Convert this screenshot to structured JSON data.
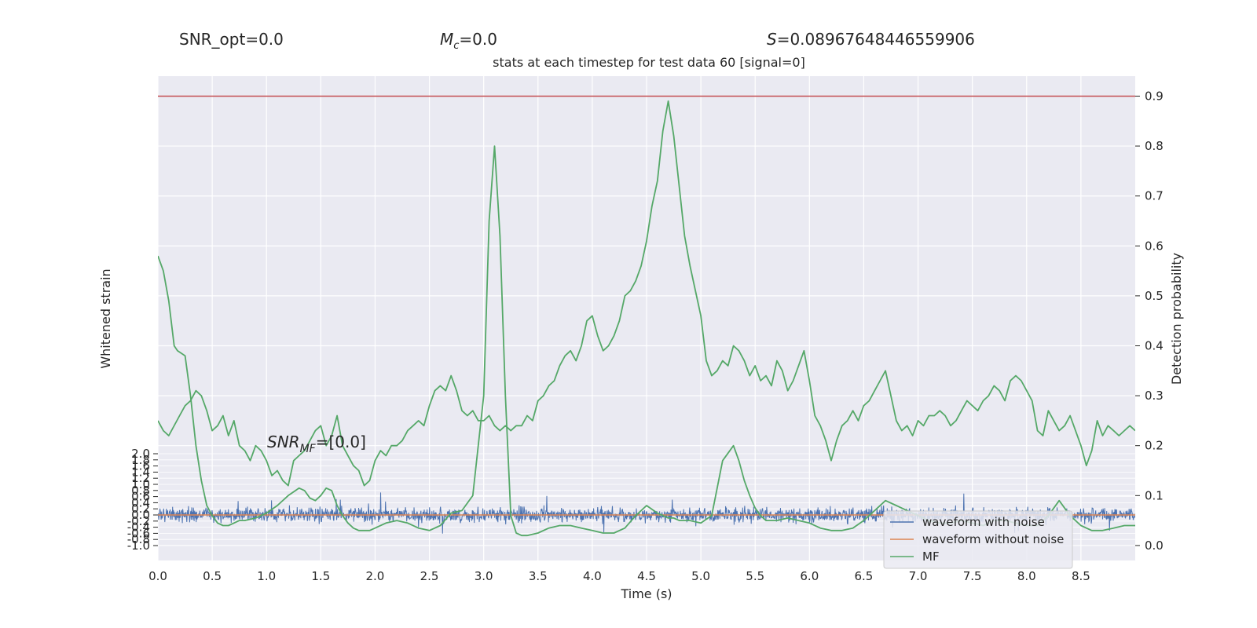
{
  "header": {
    "snr_opt": "SNR_opt=0.0",
    "mc_symbol": "M",
    "mc_sub": "c",
    "mc_value": "=0.0",
    "s_symbol": "S",
    "s_value": "=0.08967648446559906",
    "subtitle": "stats at each timestep for test data 60 [signal=0]"
  },
  "chart_data": [
    {
      "type": "line",
      "panel": "main",
      "xlabel": "Time (s)",
      "ylabel_left": "Whitened strain",
      "ylabel_right": "Detection probability",
      "xlim": [
        0.0,
        9.0
      ],
      "ylim": [
        -0.03,
        0.94
      ],
      "x_ticks": [
        "0.0",
        "0.5",
        "1.0",
        "1.5",
        "2.0",
        "2.5",
        "3.0",
        "3.5",
        "4.0",
        "4.5",
        "5.0",
        "5.5",
        "6.0",
        "6.5",
        "7.0",
        "7.5",
        "8.0",
        "8.5"
      ],
      "y_ticks": [
        "0.0",
        "0.1",
        "0.2",
        "0.3",
        "0.4",
        "0.5",
        "0.6",
        "0.7",
        "0.8",
        "0.9"
      ],
      "grid": true,
      "threshold": {
        "value": 0.9,
        "color": "#c44e52"
      },
      "series": [
        {
          "name": "MF",
          "color": "#55a868",
          "x": [
            0.0,
            0.05,
            0.1,
            0.15,
            0.18,
            0.25,
            0.3,
            0.35,
            0.4,
            0.45,
            0.5,
            0.55,
            0.6,
            0.65,
            0.7,
            0.75,
            0.8,
            0.9,
            1.0,
            1.1,
            1.2,
            1.3,
            1.35,
            1.4,
            1.45,
            1.5,
            1.55,
            1.6,
            1.65,
            1.7,
            1.75,
            1.8,
            1.85,
            1.9,
            1.95,
            2.0,
            2.1,
            2.2,
            2.3,
            2.4,
            2.5,
            2.6,
            2.7,
            2.8,
            2.9,
            3.0,
            3.05,
            3.1,
            3.15,
            3.2,
            3.25,
            3.3,
            3.35,
            3.4,
            3.5,
            3.6,
            3.7,
            3.8,
            3.9,
            4.0,
            4.1,
            4.2,
            4.3,
            4.4,
            4.5,
            4.6,
            4.7,
            4.75,
            4.8,
            4.9,
            5.0,
            5.1,
            5.2,
            5.3,
            5.35,
            5.4,
            5.45,
            5.5,
            5.55,
            5.6,
            5.7,
            5.8,
            5.9,
            6.0,
            6.1,
            6.2,
            6.3,
            6.4,
            6.5,
            6.6,
            6.7,
            6.8,
            6.9,
            7.0,
            7.1,
            7.2,
            7.3,
            7.4,
            7.5,
            7.6,
            7.7,
            7.8,
            7.9,
            8.0,
            8.1,
            8.2,
            8.3,
            8.4,
            8.5,
            8.6,
            8.7,
            8.8,
            8.9,
            9.0
          ],
          "y": [
            0.58,
            0.55,
            0.49,
            0.4,
            0.39,
            0.38,
            0.3,
            0.2,
            0.13,
            0.08,
            0.06,
            0.045,
            0.04,
            0.04,
            0.045,
            0.05,
            0.05,
            0.055,
            0.065,
            0.08,
            0.1,
            0.115,
            0.11,
            0.095,
            0.09,
            0.1,
            0.115,
            0.11,
            0.08,
            0.06,
            0.045,
            0.035,
            0.03,
            0.03,
            0.03,
            0.035,
            0.045,
            0.05,
            0.045,
            0.035,
            0.03,
            0.04,
            0.065,
            0.07,
            0.1,
            0.3,
            0.65,
            0.8,
            0.62,
            0.3,
            0.06,
            0.025,
            0.02,
            0.02,
            0.025,
            0.035,
            0.04,
            0.04,
            0.035,
            0.03,
            0.025,
            0.025,
            0.035,
            0.06,
            0.08,
            0.065,
            0.055,
            0.055,
            0.05,
            0.05,
            0.045,
            0.06,
            0.17,
            0.2,
            0.17,
            0.13,
            0.1,
            0.075,
            0.06,
            0.05,
            0.05,
            0.055,
            0.05,
            0.045,
            0.035,
            0.03,
            0.03,
            0.035,
            0.05,
            0.07,
            0.09,
            0.08,
            0.07,
            0.06,
            0.05,
            0.045,
            0.045,
            0.05,
            0.045,
            0.04,
            0.05,
            0.05,
            0.045,
            0.04,
            0.04,
            0.06,
            0.09,
            0.06,
            0.04,
            0.03,
            0.03,
            0.035,
            0.04,
            0.04
          ]
        },
        {
          "name": "",
          "color": "#55a868",
          "note": "detection probability over time (unlabeled green trace)",
          "x": [
            0.0,
            0.05,
            0.1,
            0.2,
            0.25,
            0.3,
            0.35,
            0.4,
            0.45,
            0.5,
            0.55,
            0.6,
            0.65,
            0.7,
            0.75,
            0.8,
            0.85,
            0.9,
            0.95,
            1.0,
            1.05,
            1.1,
            1.15,
            1.2,
            1.25,
            1.3,
            1.35,
            1.4,
            1.45,
            1.5,
            1.55,
            1.6,
            1.65,
            1.7,
            1.75,
            1.8,
            1.85,
            1.9,
            1.95,
            2.0,
            2.05,
            2.1,
            2.15,
            2.2,
            2.25,
            2.3,
            2.35,
            2.4,
            2.45,
            2.5,
            2.55,
            2.6,
            2.65,
            2.7,
            2.75,
            2.8,
            2.85,
            2.9,
            2.95,
            3.0,
            3.05,
            3.1,
            3.15,
            3.2,
            3.25,
            3.3,
            3.35,
            3.4,
            3.45,
            3.5,
            3.55,
            3.6,
            3.65,
            3.7,
            3.75,
            3.8,
            3.85,
            3.9,
            3.95,
            4.0,
            4.05,
            4.1,
            4.15,
            4.2,
            4.25,
            4.3,
            4.35,
            4.4,
            4.45,
            4.5,
            4.55,
            4.6,
            4.65,
            4.7,
            4.75,
            4.8,
            4.85,
            4.9,
            4.95,
            5.0,
            5.05,
            5.1,
            5.15,
            5.2,
            5.25,
            5.3,
            5.35,
            5.4,
            5.45,
            5.5,
            5.55,
            5.6,
            5.65,
            5.7,
            5.75,
            5.8,
            5.85,
            5.9,
            5.95,
            6.0,
            6.05,
            6.1,
            6.15,
            6.2,
            6.25,
            6.3,
            6.35,
            6.4,
            6.45,
            6.5,
            6.55,
            6.6,
            6.65,
            6.7,
            6.75,
            6.8,
            6.85,
            6.9,
            6.95,
            7.0,
            7.05,
            7.1,
            7.15,
            7.2,
            7.25,
            7.3,
            7.35,
            7.4,
            7.45,
            7.5,
            7.55,
            7.6,
            7.65,
            7.7,
            7.75,
            7.8,
            7.85,
            7.9,
            7.95,
            8.0,
            8.05,
            8.1,
            8.15,
            8.2,
            8.25,
            8.3,
            8.35,
            8.4,
            8.45,
            8.5,
            8.55,
            8.6,
            8.65,
            8.7,
            8.75,
            8.8,
            8.85,
            8.9,
            8.95,
            9.0
          ],
          "y": [
            0.25,
            0.23,
            0.22,
            0.26,
            0.28,
            0.29,
            0.31,
            0.3,
            0.27,
            0.23,
            0.24,
            0.26,
            0.22,
            0.25,
            0.2,
            0.19,
            0.17,
            0.2,
            0.19,
            0.17,
            0.14,
            0.15,
            0.13,
            0.12,
            0.17,
            0.18,
            0.19,
            0.21,
            0.23,
            0.24,
            0.2,
            0.22,
            0.26,
            0.2,
            0.18,
            0.16,
            0.15,
            0.12,
            0.13,
            0.17,
            0.19,
            0.18,
            0.2,
            0.2,
            0.21,
            0.23,
            0.24,
            0.25,
            0.24,
            0.28,
            0.31,
            0.32,
            0.31,
            0.34,
            0.31,
            0.27,
            0.26,
            0.27,
            0.25,
            0.25,
            0.26,
            0.24,
            0.23,
            0.24,
            0.23,
            0.24,
            0.24,
            0.26,
            0.25,
            0.29,
            0.3,
            0.32,
            0.33,
            0.36,
            0.38,
            0.39,
            0.37,
            0.4,
            0.45,
            0.46,
            0.42,
            0.39,
            0.4,
            0.42,
            0.45,
            0.5,
            0.51,
            0.53,
            0.56,
            0.61,
            0.68,
            0.73,
            0.83,
            0.89,
            0.82,
            0.72,
            0.62,
            0.56,
            0.51,
            0.46,
            0.37,
            0.34,
            0.35,
            0.37,
            0.36,
            0.4,
            0.39,
            0.37,
            0.34,
            0.36,
            0.33,
            0.34,
            0.32,
            0.37,
            0.35,
            0.31,
            0.33,
            0.36,
            0.39,
            0.33,
            0.26,
            0.24,
            0.21,
            0.17,
            0.21,
            0.24,
            0.25,
            0.27,
            0.25,
            0.28,
            0.29,
            0.31,
            0.33,
            0.35,
            0.3,
            0.25,
            0.23,
            0.24,
            0.22,
            0.25,
            0.24,
            0.26,
            0.26,
            0.27,
            0.26,
            0.24,
            0.25,
            0.27,
            0.29,
            0.28,
            0.27,
            0.29,
            0.3,
            0.32,
            0.31,
            0.29,
            0.33,
            0.34,
            0.33,
            0.31,
            0.29,
            0.23,
            0.22,
            0.27,
            0.25,
            0.23,
            0.24,
            0.26,
            0.23,
            0.2,
            0.16,
            0.19,
            0.25,
            0.22,
            0.24,
            0.23,
            0.22,
            0.23,
            0.24,
            0.23
          ]
        }
      ]
    },
    {
      "type": "line",
      "panel": "inset",
      "title": "SNR_MF=[0.0]",
      "ylim": [
        -1.0,
        2.0
      ],
      "y_ticks": [
        "2.0",
        "1.8",
        "1.6",
        "1.4",
        "1.2",
        "1.0",
        "0.8",
        "0.6",
        "0.4",
        "0.2",
        "0.0",
        "-0.2",
        "-0.4",
        "-0.6",
        "-0.8",
        "-1.0"
      ],
      "series": [
        {
          "name": "waveform with noise",
          "color": "#4c72b0",
          "amplitude": 0.35
        },
        {
          "name": "waveform without noise",
          "color": "#dd8452",
          "value": 0.0
        },
        {
          "name": "MF",
          "color": "#55a868"
        }
      ],
      "legend_placement": "lower-right"
    }
  ],
  "inset_title": {
    "prefix": "SNR",
    "sub": "MF",
    "suffix": "=[0.0]"
  }
}
